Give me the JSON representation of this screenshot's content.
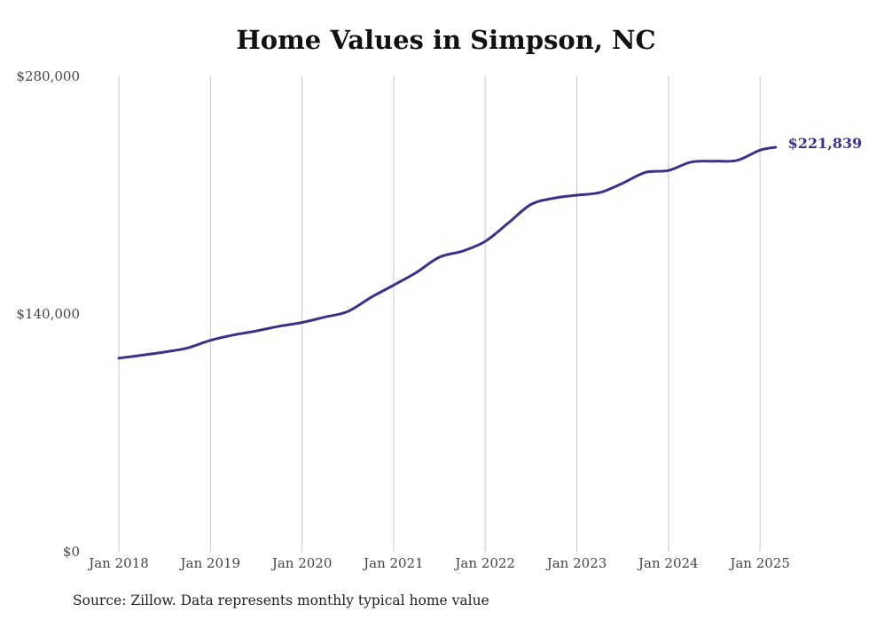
{
  "chart_data": {
    "type": "line",
    "title": "Home Values in Simpson, NC",
    "source_note": "Source: Zillow. Data represents monthly typical home value",
    "ylim": [
      0,
      280000
    ],
    "y_ticks": [
      {
        "value": 0,
        "label": "$0"
      },
      {
        "value": 140000,
        "label": "$140,000"
      },
      {
        "value": 280000,
        "label": "$280,000"
      }
    ],
    "x_ticks": [
      {
        "value": 2018.0,
        "label": "Jan 2018"
      },
      {
        "value": 2019.0,
        "label": "Jan 2019"
      },
      {
        "value": 2020.0,
        "label": "Jan 2020"
      },
      {
        "value": 2021.0,
        "label": "Jan 2021"
      },
      {
        "value": 2022.0,
        "label": "Jan 2022"
      },
      {
        "value": 2023.0,
        "label": "Jan 2023"
      },
      {
        "value": 2024.0,
        "label": "Jan 2024"
      },
      {
        "value": 2025.0,
        "label": "Jan 2025"
      }
    ],
    "grid": "vertical lines at each January",
    "line_color": "#3b3288",
    "series": [
      {
        "x": [
          2018.0,
          2018.25,
          2018.5,
          2018.75,
          2019.0,
          2019.25,
          2019.5,
          2019.75,
          2020.0,
          2020.25,
          2020.5,
          2020.75,
          2021.0,
          2021.25,
          2021.5,
          2021.75,
          2022.0,
          2022.25,
          2022.5,
          2022.75,
          2023.0,
          2023.25,
          2023.5,
          2023.75,
          2024.0,
          2024.25,
          2024.5,
          2024.75,
          2025.0,
          2025.17
        ],
        "values": [
          114000,
          115700,
          117600,
          120000,
          124500,
          127600,
          130000,
          132800,
          135000,
          138200,
          141500,
          149700,
          157000,
          164500,
          173500,
          177000,
          182800,
          193500,
          204500,
          208200,
          210000,
          211500,
          217000,
          223400,
          224500,
          229500,
          230000,
          230500,
          236500,
          221839
        ],
        "end_label": "$221,839"
      }
    ]
  }
}
